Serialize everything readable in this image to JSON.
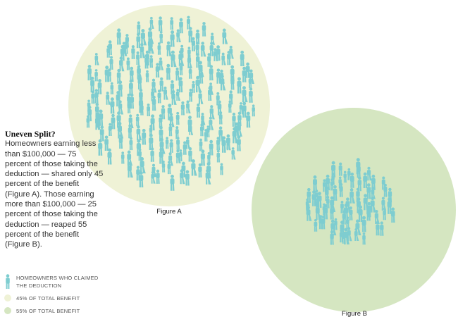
{
  "caption": {
    "heading": "Uneven Split?",
    "body": "Homeowners earning less than $100,000 — 75 percent of those taking the deduction — shared only 45 percent of the benefit (Figure A). Those earning more than $100,000 — 25 percent of those taking the deduction — reaped 55 percent of the benefit (Figure B)."
  },
  "legend": {
    "homeowners": "HOMEOWNERS WHO CLAIMED THE DEDUCTION",
    "benefit_45": "45% OF TOTAL BENEFIT",
    "benefit_55": "55% OF TOTAL BENEFIT"
  },
  "colors": {
    "figure_a": "#eff2d6",
    "figure_b": "#d5e6c1",
    "person": "#7ecdd0"
  },
  "chart_data": {
    "type": "pictogram",
    "series": [
      {
        "name": "Figure A",
        "homeowners_share_percent": 75,
        "benefit_share_percent": 45,
        "icons": 225
      },
      {
        "name": "Figure B",
        "homeowners_share_percent": 25,
        "benefit_share_percent": 55,
        "icons": 75
      }
    ]
  }
}
